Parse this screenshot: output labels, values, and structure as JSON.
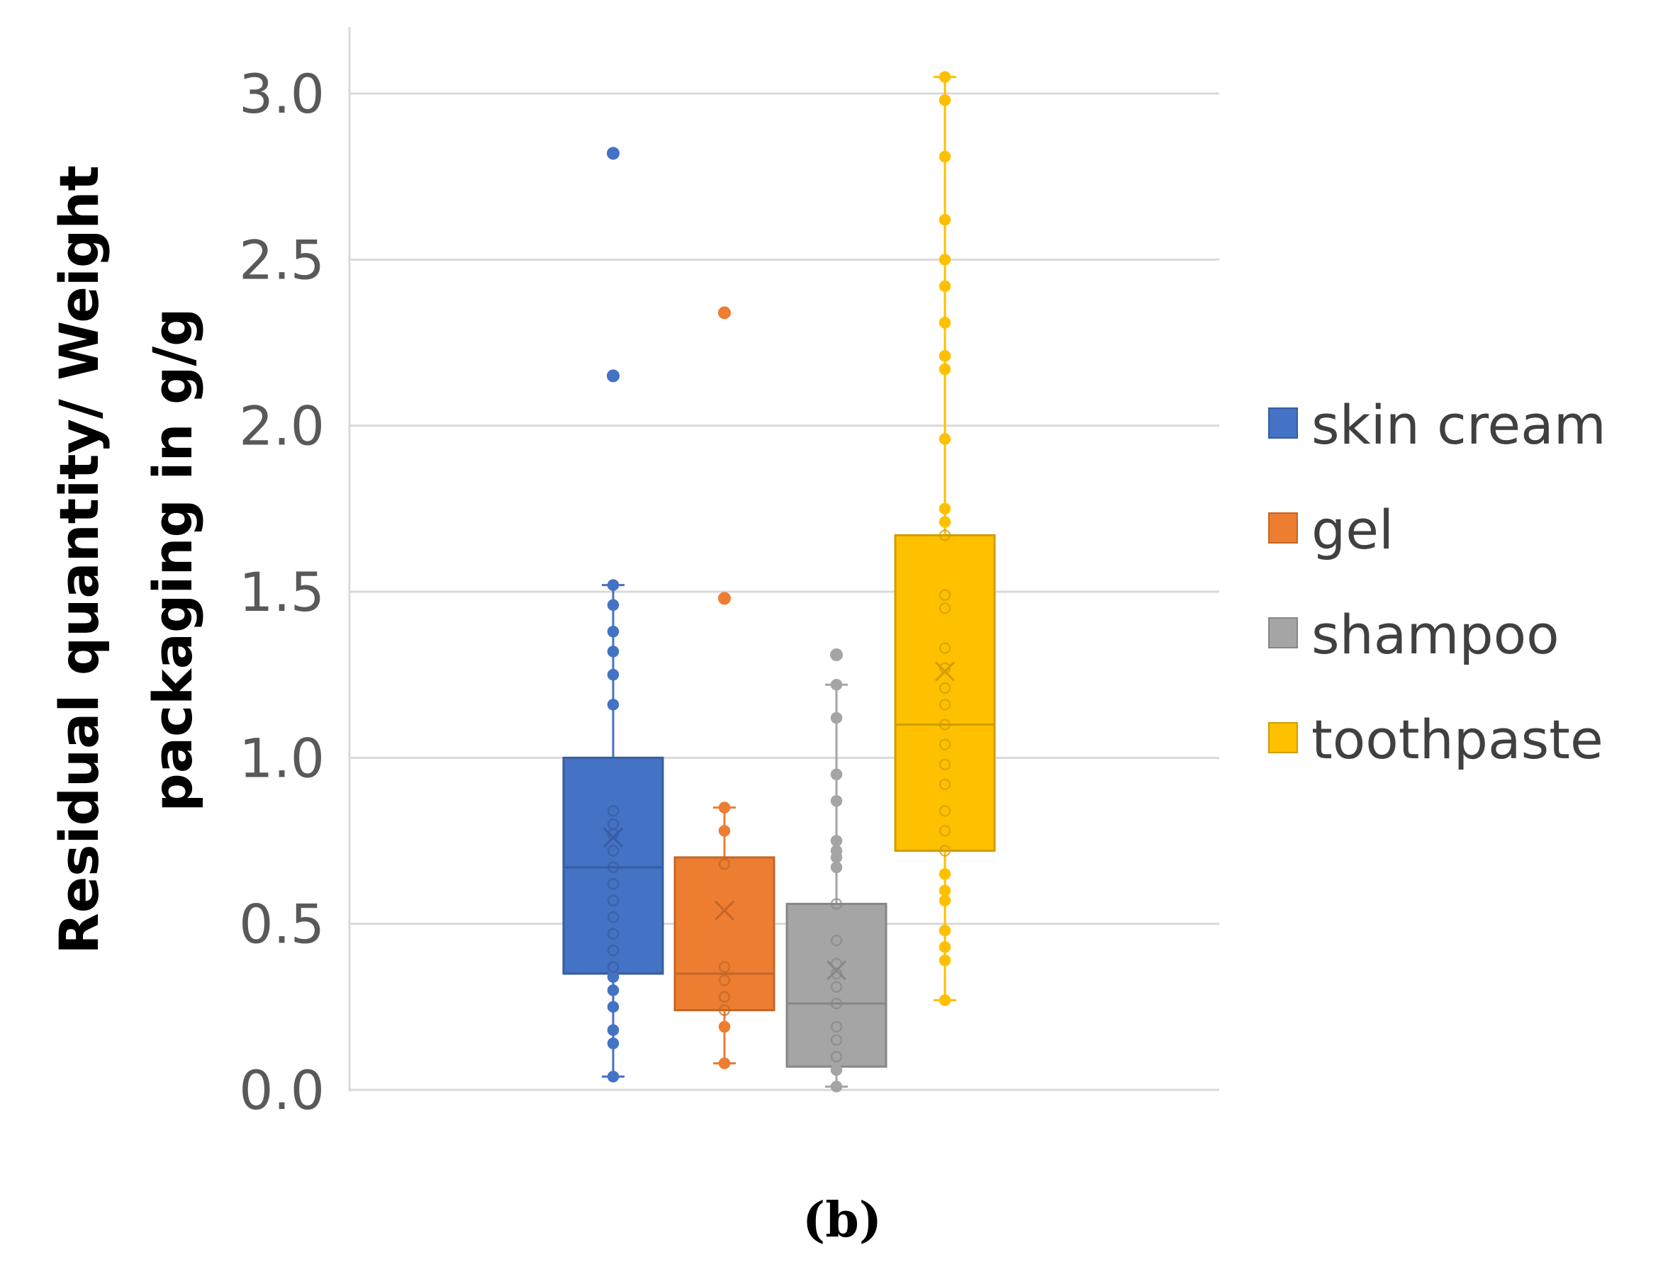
{
  "chart_data": {
    "type": "box",
    "title": "",
    "xlabel": "",
    "ylabel_line1": "Residual quantity/ Weight",
    "ylabel_line2": "packaging in g/g",
    "ylim": [
      0,
      3.2
    ],
    "yticks": [
      0,
      0.5,
      1.0,
      1.5,
      2.0,
      2.5,
      3.0
    ],
    "ytick_labels": [
      "0.0",
      "0.5",
      "1.0",
      "1.5",
      "2.0",
      "2.5",
      "3.0"
    ],
    "grid": true,
    "legend_position": "right",
    "series": [
      {
        "name": "skin cream",
        "color": "#4472C4",
        "whisker_low": 0.04,
        "q1": 0.35,
        "median": 0.67,
        "q3": 1.0,
        "whisker_high": 1.52,
        "mean": 0.76,
        "points": [
          0.04,
          0.14,
          0.18,
          0.25,
          0.3,
          0.34,
          0.37,
          0.42,
          0.47,
          0.52,
          0.57,
          0.62,
          0.67,
          0.72,
          0.77,
          0.8,
          0.84,
          1.16,
          1.25,
          1.32,
          1.38,
          1.46,
          1.52
        ],
        "outliers": [
          2.15,
          2.82
        ]
      },
      {
        "name": "gel",
        "color": "#ED7D31",
        "whisker_low": 0.08,
        "q1": 0.24,
        "median": 0.35,
        "q3": 0.7,
        "whisker_high": 0.85,
        "mean": 0.54,
        "points": [
          0.08,
          0.19,
          0.24,
          0.28,
          0.33,
          0.37,
          0.68,
          0.78,
          0.85
        ],
        "outliers": [
          1.48,
          2.34
        ]
      },
      {
        "name": "shampoo",
        "color": "#A5A5A5",
        "whisker_low": 0.01,
        "q1": 0.07,
        "median": 0.26,
        "q3": 0.56,
        "whisker_high": 1.22,
        "mean": 0.36,
        "points": [
          0.01,
          0.06,
          0.1,
          0.15,
          0.19,
          0.26,
          0.31,
          0.35,
          0.38,
          0.45,
          0.56,
          0.67,
          0.7,
          0.72,
          0.75,
          0.87,
          0.95,
          1.12,
          1.22
        ],
        "outliers": [
          1.31
        ]
      },
      {
        "name": "toothpaste",
        "color": "#FFC000",
        "whisker_low": 0.27,
        "q1": 0.72,
        "median": 1.1,
        "q3": 1.67,
        "whisker_high": 3.05,
        "mean": 1.26,
        "points": [
          0.27,
          0.39,
          0.43,
          0.48,
          0.57,
          0.6,
          0.65,
          0.72,
          0.78,
          0.84,
          0.92,
          0.98,
          1.04,
          1.1,
          1.16,
          1.21,
          1.27,
          1.33,
          1.45,
          1.49,
          1.67,
          1.71,
          1.75,
          1.96,
          2.17,
          2.21,
          2.31,
          2.42,
          2.5,
          2.62,
          2.81,
          2.98,
          3.05
        ],
        "outliers": []
      }
    ]
  },
  "caption": "(b)"
}
